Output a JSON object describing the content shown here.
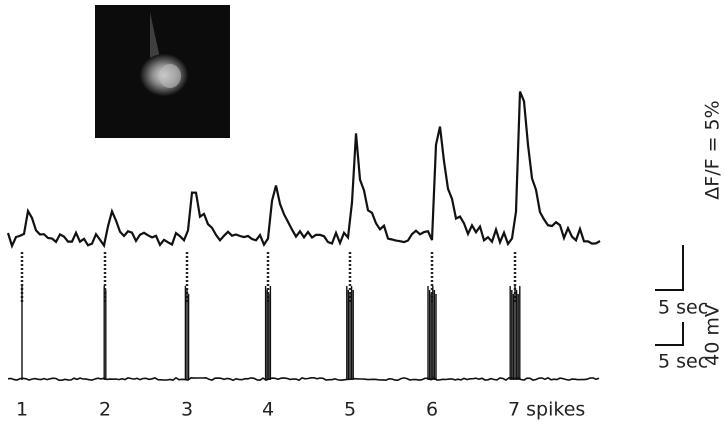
{
  "spike_labels": [
    "1",
    "2",
    "3",
    "4",
    "5",
    "6",
    "7 spikes"
  ],
  "scale_bars": {
    "fluorescence": {
      "time": "5 sec",
      "amplitude": "ΔF/F = 5%"
    },
    "voltage": {
      "time": "5 sec",
      "amplitude": "40 mV"
    }
  }
}
